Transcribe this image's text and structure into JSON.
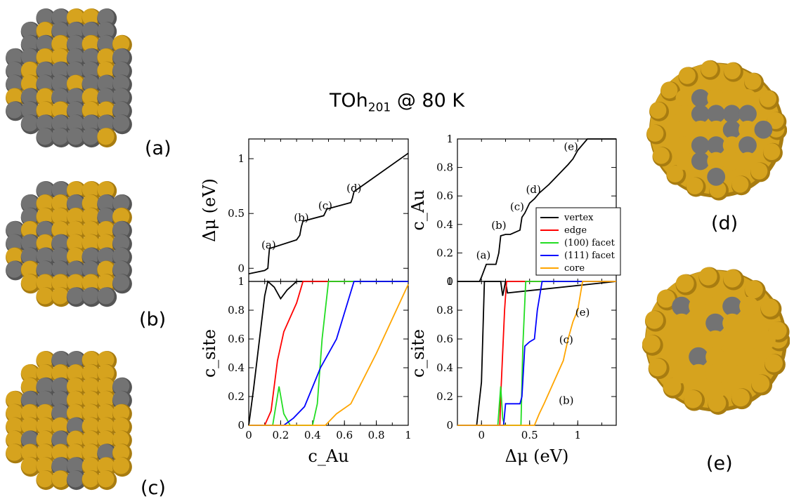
{
  "figure": {
    "title_main": "TOh",
    "title_sub": "201",
    "title_rest": " @ 80 K"
  },
  "clusters": [
    {
      "label": "(a)",
      "kind": "surface-3d",
      "gold_fraction": 0.25
    },
    {
      "label": "(b)",
      "kind": "surface-3d",
      "gold_fraction": 0.55
    },
    {
      "label": "(c)",
      "kind": "surface-3d",
      "gold_fraction": 0.78
    },
    {
      "label": "(d)",
      "kind": "cross-section",
      "gold_fraction": 0.5
    },
    {
      "label": "(e)",
      "kind": "cross-section",
      "gold_fraction": 0.85
    }
  ],
  "colors": {
    "gold": "#d6a31e",
    "gold_dark": "#a87c10",
    "grey": "#737373",
    "grey_dark": "#555555",
    "vertex": "#000000",
    "edge": "#ff0000",
    "facet100": "#22dd22",
    "facet111": "#0000ff",
    "core": "#ffa500"
  },
  "chart_data": [
    {
      "id": "top-left",
      "type": "line",
      "xlabel": "",
      "ylabel": "Δμ (eV)",
      "xlim": [
        0,
        1
      ],
      "ylim": [
        -0.12,
        1.18
      ],
      "yticks": [
        "0",
        "0.5",
        "1"
      ],
      "ytick_values": [
        0,
        0.5,
        1
      ],
      "series": [
        {
          "color": "#000000",
          "x": [
            0.0,
            0.1,
            0.12,
            0.125,
            0.13,
            0.3,
            0.32,
            0.33,
            0.34,
            0.47,
            0.48,
            0.49,
            0.64,
            0.65,
            0.66,
            1.0
          ],
          "y": [
            -0.05,
            -0.02,
            0.0,
            0.1,
            0.18,
            0.26,
            0.3,
            0.38,
            0.43,
            0.48,
            0.51,
            0.54,
            0.6,
            0.64,
            0.7,
            1.05
          ]
        }
      ],
      "annotations": [
        {
          "text": "(a)",
          "x": 0.125,
          "y": 0.18
        },
        {
          "text": "(b)",
          "x": 0.33,
          "y": 0.43
        },
        {
          "text": "(c)",
          "x": 0.48,
          "y": 0.54
        },
        {
          "text": "(d)",
          "x": 0.66,
          "y": 0.7
        }
      ]
    },
    {
      "id": "top-right",
      "type": "line",
      "xlabel": "",
      "ylabel": "c_Au",
      "xlim": [
        -0.25,
        1.4
      ],
      "ylim": [
        0,
        1
      ],
      "yticks": [
        "0",
        "0.2",
        "0.4",
        "0.6",
        "0.8",
        "1"
      ],
      "ytick_values": [
        0,
        0.2,
        0.4,
        0.6,
        0.8,
        1
      ],
      "series": [
        {
          "color": "#000000",
          "x": [
            -0.25,
            -0.02,
            0.0,
            0.05,
            0.1,
            0.15,
            0.18,
            0.2,
            0.25,
            0.3,
            0.4,
            0.42,
            0.45,
            0.5,
            0.55,
            0.6,
            0.65,
            0.7,
            0.8,
            0.9,
            0.95,
            1.0,
            1.05,
            1.1,
            1.4
          ],
          "y": [
            0,
            0,
            0.03,
            0.12,
            0.12,
            0.12,
            0.2,
            0.32,
            0.33,
            0.33,
            0.36,
            0.45,
            0.48,
            0.55,
            0.58,
            0.62,
            0.65,
            0.68,
            0.75,
            0.82,
            0.86,
            0.92,
            0.96,
            1.0,
            1.0
          ]
        }
      ],
      "annotations": [
        {
          "text": "(a)",
          "x": 0.02,
          "y": 0.16
        },
        {
          "text": "(b)",
          "x": 0.18,
          "y": 0.37
        },
        {
          "text": "(c)",
          "x": 0.37,
          "y": 0.5
        },
        {
          "text": "(d)",
          "x": 0.54,
          "y": 0.62
        },
        {
          "text": "(e)",
          "x": 0.93,
          "y": 0.92
        }
      ],
      "legend": {
        "position": "right",
        "entries": [
          {
            "label": "vertex",
            "color": "#000000"
          },
          {
            "label": "edge",
            "color": "#ff0000"
          },
          {
            "label": "(100) facet",
            "color": "#22dd22"
          },
          {
            "label": "(111) facet",
            "color": "#0000ff"
          },
          {
            "label": "core",
            "color": "#ffa500"
          }
        ]
      }
    },
    {
      "id": "bottom-left",
      "type": "line",
      "xlabel": "c_Au",
      "ylabel": "c_site",
      "xlim": [
        0,
        1
      ],
      "ylim": [
        0,
        1
      ],
      "xticks": [
        "0",
        "0.2",
        "0.4",
        "0.6",
        "0.8",
        "1"
      ],
      "xtick_values": [
        0,
        0.2,
        0.4,
        0.6,
        0.8,
        1
      ],
      "yticks": [
        "0",
        "0.2",
        "0.4",
        "0.6",
        "0.8",
        "1"
      ],
      "ytick_values": [
        0,
        0.2,
        0.4,
        0.6,
        0.8,
        1
      ],
      "series": [
        {
          "color": "#000000",
          "x": [
            0.0,
            0.03,
            0.1,
            0.12,
            0.16,
            0.2,
            0.24,
            0.3,
            1.0
          ],
          "y": [
            0.0,
            0.25,
            0.9,
            1.0,
            0.96,
            0.88,
            0.94,
            1.0,
            1.0
          ]
        },
        {
          "color": "#ff0000",
          "x": [
            0.0,
            0.1,
            0.14,
            0.18,
            0.22,
            0.26,
            0.3,
            0.34,
            1.0
          ],
          "y": [
            0.0,
            0.0,
            0.1,
            0.45,
            0.65,
            0.75,
            0.85,
            1.0,
            1.0
          ]
        },
        {
          "color": "#22dd22",
          "x": [
            0.0,
            0.15,
            0.19,
            0.22,
            0.26,
            0.4,
            0.43,
            0.46,
            0.5,
            1.0
          ],
          "y": [
            0.0,
            0.0,
            0.27,
            0.08,
            0.0,
            0.0,
            0.15,
            0.6,
            1.0,
            1.0
          ]
        },
        {
          "color": "#0000ff",
          "x": [
            0.0,
            0.22,
            0.28,
            0.35,
            0.45,
            0.55,
            0.66,
            1.0
          ],
          "y": [
            0.0,
            0.0,
            0.05,
            0.13,
            0.4,
            0.6,
            1.0,
            1.0
          ]
        },
        {
          "color": "#ffa500",
          "x": [
            0.0,
            0.48,
            0.55,
            0.64,
            0.8,
            1.0
          ],
          "y": [
            0.0,
            0.0,
            0.08,
            0.15,
            0.5,
            0.98
          ]
        }
      ]
    },
    {
      "id": "bottom-right",
      "type": "line",
      "xlabel": "Δμ (eV)",
      "ylabel": "c_site",
      "xlim": [
        -0.25,
        1.4
      ],
      "ylim": [
        0,
        1
      ],
      "xticks": [
        "0",
        "0.5",
        "1"
      ],
      "xtick_values": [
        0,
        0.5,
        1
      ],
      "yticks": [
        "0",
        "0.2",
        "0.4",
        "0.6",
        "0.8",
        "1"
      ],
      "ytick_values": [
        0,
        0.2,
        0.4,
        0.6,
        0.8,
        1
      ],
      "series": [
        {
          "color": "#000000",
          "x": [
            -0.25,
            -0.05,
            0.0,
            0.03,
            0.2,
            0.22,
            0.25,
            0.27,
            1.4
          ],
          "y": [
            0,
            0,
            0.3,
            1.0,
            1.0,
            0.9,
            1.0,
            0.92,
            1.0
          ]
        },
        {
          "color": "#ff0000",
          "x": [
            -0.25,
            0.19,
            0.2,
            0.24,
            0.26,
            1.4
          ],
          "y": [
            0,
            0,
            0.2,
            0.8,
            1.0,
            1.0
          ]
        },
        {
          "color": "#22dd22",
          "x": [
            -0.25,
            0.17,
            0.2,
            0.22,
            0.24,
            0.41,
            0.43,
            0.46,
            1.4
          ],
          "y": [
            0,
            0,
            0.27,
            0.05,
            0,
            0,
            0.55,
            1.0,
            1.0
          ]
        },
        {
          "color": "#0000ff",
          "x": [
            -0.25,
            0.23,
            0.25,
            0.4,
            0.42,
            0.45,
            0.5,
            0.55,
            0.58,
            0.63,
            1.4
          ],
          "y": [
            0,
            0,
            0.15,
            0.15,
            0.2,
            0.55,
            0.58,
            0.6,
            0.8,
            1.0,
            1.0
          ]
        },
        {
          "color": "#ffa500",
          "x": [
            -0.25,
            0.55,
            0.6,
            0.65,
            0.75,
            0.85,
            0.9,
            0.95,
            1.0,
            1.05,
            1.4
          ],
          "y": [
            0,
            0,
            0.08,
            0.15,
            0.3,
            0.45,
            0.6,
            0.72,
            0.8,
            1.0,
            1.0
          ]
        }
      ],
      "annotations": [
        {
          "text": "(e)",
          "x": 1.05,
          "y": 0.76
        },
        {
          "text": "(c)",
          "x": 0.88,
          "y": 0.57
        },
        {
          "text": "(b)",
          "x": 0.88,
          "y": 0.15
        }
      ]
    }
  ]
}
